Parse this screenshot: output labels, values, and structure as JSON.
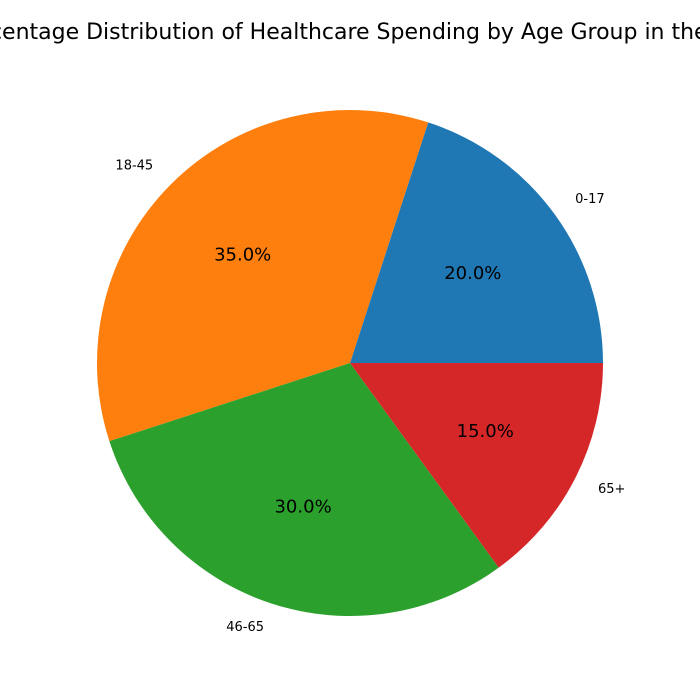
{
  "chart_data": {
    "type": "pie",
    "title": "Percentage Distribution of Healthcare Spending by Age Group in the US",
    "categories": [
      "0-17",
      "18-45",
      "46-65",
      "65+"
    ],
    "values": [
      20.0,
      35.0,
      30.0,
      15.0
    ],
    "percent_labels": [
      "20.0%",
      "35.0%",
      "30.0%",
      "15.0%"
    ],
    "colors": [
      "#1f77b4",
      "#ff7f0e",
      "#2ca02c",
      "#d62728"
    ],
    "start_angle_deg": 0,
    "direction": "counterclockwise",
    "legend": "none"
  }
}
